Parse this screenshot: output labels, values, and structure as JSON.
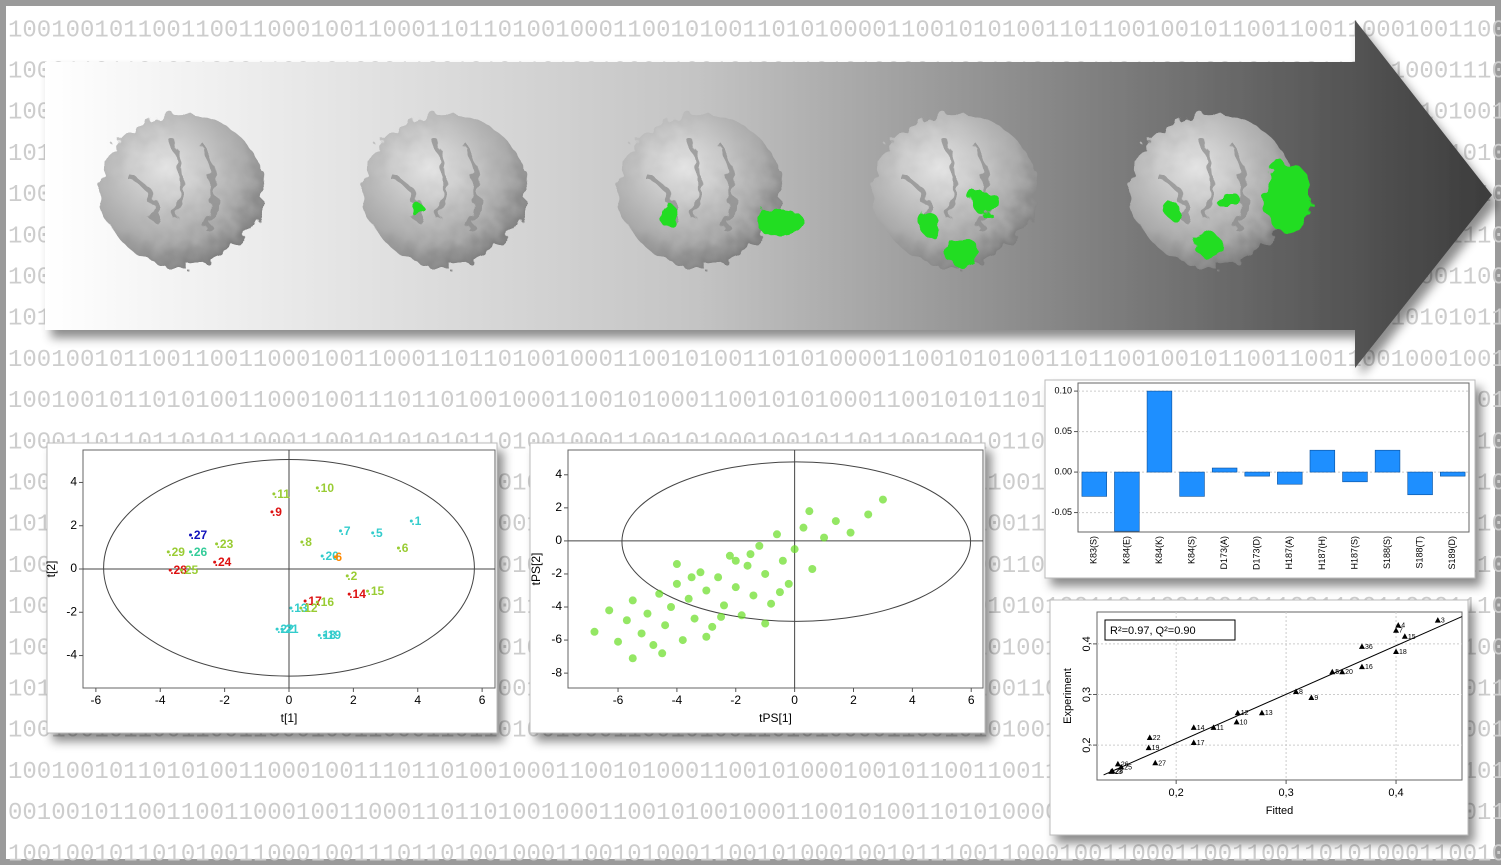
{
  "background_rows": [
    "10010010110011001100010011000110110100100011001010011010100001100101010011011001001011001100110001001100",
    "10001101101001000110010100011001010110100100011001010011010100001100101010011011001001011001100110001110",
    "10010010110011001100010011000110110100100011001010011010100001100101010011011001001011001100110000101001",
    "10110101000110010100011001001011010010001100101001101010000110010101001101100100101100110011000110001010",
    "10010110011001100010011000110110100100011001010011010100001100101010011011001001011001100110001001100110",
    "10001101101011000110010100011001010110100100011001010011010100001100101010011011001001011001100110001110",
    "10010010110011001100010011000110110100100011001010011010100001100101010011011001001011001100110001001100",
    "10110101000110010100011001001011010010001100101001101010000110010101001101100100101100110011000110101011",
    "10010010110011001100010011000110110100100011001010011010100001100101010011011001001011001100110010001001",
    "10010010110101001100010011101101001000110010100011001010100011001010110100100011001010010001100110011001",
    "10001101101101011000110010101010110100100011001010001001011011001001011001100110001001100011011010001010",
    "10010010110011001100010011000110110100100011001010000110010101001101100100101100110011000100110001101010",
    "10110101000110010100011001001011010010001100101001101010000110010101001101100100101100110011000110001010",
    "10010110011001100010011000110110100100011001010011010100001100101010011011001001011001100110001001100110",
    "10001101101011000110010100011001010110100100011001010011010100001100101010011011001001011001100110001110",
    "10010010110011001100010011000110110100100011001010011010100001100101010011011001001011001100110001001100",
    "10110101000110010100011001001011010010001100101001101010000110010101001101100100101100110011000110101011",
    "10010010110011001100010011000110110100100011001010011010100001100101010011011001001011001100110010001001",
    "10010010110101001100010011101101001000110010100011001010001001011001100110001001100011011010010001100101",
    "00100101100110011000100110001101101001000110010100100011001010011010100001100101010011011001001011001011",
    "10010010110101001100010011101101001000110010100011001010001001011100110001001100011001100110101000110010"
  ],
  "chart_data": [
    {
      "type": "scatter",
      "xlabel": "t[1]",
      "ylabel": "t[2]",
      "labels": [
        ".11",
        ".10",
        ".9",
        ".27",
        ".23",
        ".29",
        ".26",
        ".28",
        ".25",
        ".24",
        ".8",
        ".7",
        ".5",
        ".1",
        ".6",
        ".20",
        "6",
        ".2",
        ".15",
        ".14",
        ".17",
        ".16",
        ".13",
        ".12",
        ".22",
        ".21",
        ".18",
        ".19"
      ],
      "x": [
        -0.47,
        0.88,
        -0.53,
        -3.06,
        -2.25,
        -3.75,
        -3.06,
        -3.69,
        -3.34,
        -2.31,
        0.4,
        1.6,
        2.6,
        3.8,
        3.4,
        1.03,
        1.44,
        1.81,
        2.44,
        1.87,
        0.5,
        0.88,
        0.06,
        0.37,
        -0.37,
        -0.22,
        0.94,
        1.1
      ],
      "y": [
        3.47,
        3.75,
        2.64,
        1.57,
        1.16,
        0.79,
        0.79,
        -0.05,
        -0.05,
        0.32,
        1.25,
        1.76,
        1.67,
        2.22,
        0.97,
        0.6,
        0.56,
        -0.32,
        -1.02,
        -1.16,
        -1.48,
        -1.53,
        -1.8,
        -1.8,
        -2.78,
        -2.78,
        -3.06,
        -3.06
      ],
      "colors": [
        "#99cc33",
        "#99cc33",
        "#dd1111",
        "#1111bb",
        "#99cc33",
        "#99cc33",
        "#33cc99",
        "#dd1111",
        "#99cc33",
        "#dd1111",
        "#99cc33",
        "#33cccc",
        "#33cccc",
        "#33cccc",
        "#99cc33",
        "#33cccc",
        "#ff8800",
        "#99cc33",
        "#99cc33",
        "#dd1111",
        "#dd1111",
        "#99cc33",
        "#33cccc",
        "#99cc33",
        "#33cccc",
        "#33cccc",
        "#33cccc",
        "#33cccc"
      ],
      "xlim": [
        -6.4,
        6.4
      ],
      "ylim": [
        -5.5,
        5.5
      ],
      "xticks": [
        -6,
        -4,
        -2,
        0,
        2,
        4,
        6
      ],
      "yticks": [
        -4,
        -2,
        0,
        2,
        4
      ]
    },
    {
      "type": "scatter",
      "xlabel": "tPS[1]",
      "ylabel": "tPS[2]",
      "color": "#66dd22",
      "x": [
        -6.8,
        -6.3,
        -6.0,
        -5.7,
        -5.5,
        -5.2,
        -5.0,
        -4.8,
        -4.6,
        -4.4,
        -4.2,
        -4.0,
        -3.8,
        -3.6,
        -3.4,
        -3.2,
        -3.0,
        -2.8,
        -2.6,
        -2.4,
        -2.2,
        -2.0,
        -1.8,
        -1.6,
        -1.4,
        -1.2,
        -1.0,
        -0.8,
        -0.6,
        -0.4,
        -0.2,
        0.0,
        0.3,
        0.6,
        1.0,
        1.4,
        1.9,
        2.5,
        3.0,
        -3.5,
        -2.5,
        -1.5,
        -4.5,
        -0.5,
        -5.5,
        -3.0,
        -2.0,
        -1.0,
        -4.0,
        0.5
      ],
      "y": [
        -5.5,
        -4.2,
        -6.1,
        -4.8,
        -3.6,
        -5.6,
        -4.4,
        -6.3,
        -3.2,
        -5.1,
        -4.0,
        -2.6,
        -6.0,
        -3.5,
        -4.7,
        -1.9,
        -3.0,
        -5.2,
        -2.2,
        -3.9,
        -0.9,
        -2.8,
        -4.5,
        -1.5,
        -3.3,
        -0.3,
        -2.0,
        -3.8,
        0.4,
        -1.2,
        -2.6,
        -0.5,
        0.8,
        -1.7,
        0.2,
        1.2,
        0.5,
        1.6,
        2.5,
        -2.2,
        -4.6,
        -0.8,
        -6.8,
        -3.1,
        -7.1,
        -5.8,
        -1.2,
        -5.0,
        -1.4,
        1.8
      ],
      "xlim": [
        -7.7,
        6.4
      ],
      "ylim": [
        -8.9,
        5.5
      ],
      "xticks": [
        -6,
        -4,
        -2,
        0,
        2,
        4,
        6
      ],
      "yticks": [
        -8,
        -6,
        -4,
        -2,
        0,
        2,
        4
      ]
    },
    {
      "type": "bar",
      "color": "#1e8fff",
      "categories": [
        "K83(S)",
        "K84(E)",
        "K84(K)",
        "K84(S)",
        "D173(A)",
        "D173(D)",
        "H187(A)",
        "H187(H)",
        "H187(S)",
        "S188(S)",
        "S188(T)",
        "S189(D)"
      ],
      "values": [
        -0.03,
        -0.073,
        0.1,
        -0.03,
        0.005,
        -0.005,
        -0.015,
        0.027,
        -0.012,
        0.027,
        -0.028,
        -0.005
      ],
      "ylim": [
        -0.074,
        0.11
      ],
      "yticks": [
        -0.05,
        {
          "value": 0,
          "label": "0.00"
        },
        0.05,
        {
          "value": 0.1,
          "label": "0.10"
        }
      ],
      "grid": true
    },
    {
      "type": "scatter",
      "xlabel": "Fitted",
      "ylabel": "Experiment",
      "annotation": "R²=0.97, Q²=0.90",
      "color": "#000000",
      "labels": [
        "3",
        "4",
        "7",
        "15",
        "36",
        "18",
        "16",
        "5",
        "20",
        "8",
        "9",
        "12",
        "13",
        "10",
        "14",
        "11",
        "22",
        "19",
        "17",
        "27",
        "26",
        "25",
        "28",
        "23"
      ],
      "x": [
        0.438,
        0.402,
        0.4,
        0.408,
        0.369,
        0.4,
        0.369,
        0.342,
        0.351,
        0.309,
        0.323,
        0.256,
        0.278,
        0.255,
        0.216,
        0.234,
        0.176,
        0.175,
        0.216,
        0.181,
        0.147,
        0.15,
        0.142,
        0.141
      ],
      "y": [
        0.446,
        0.436,
        0.426,
        0.414,
        0.394,
        0.384,
        0.354,
        0.344,
        0.344,
        0.305,
        0.293,
        0.263,
        0.263,
        0.245,
        0.234,
        0.234,
        0.214,
        0.194,
        0.204,
        0.164,
        0.162,
        0.156,
        0.148,
        0.147
      ],
      "fit_line": {
        "x": [
          0.134,
          0.46
        ],
        "y": [
          0.141,
          0.454
        ]
      },
      "xlim": [
        0.128,
        0.46
      ],
      "ylim": [
        0.131,
        0.463
      ],
      "xticks": [
        {
          "value": 0.2,
          "label": "0,2"
        },
        {
          "value": 0.3,
          "label": "0,3"
        },
        {
          "value": 0.4,
          "label": "0,4"
        }
      ],
      "yticks": [
        {
          "value": 0.2,
          "label": "0,2"
        },
        {
          "value": 0.3,
          "label": "0,3"
        },
        {
          "value": 0.4,
          "label": "0,4"
        }
      ],
      "grid": true
    }
  ]
}
